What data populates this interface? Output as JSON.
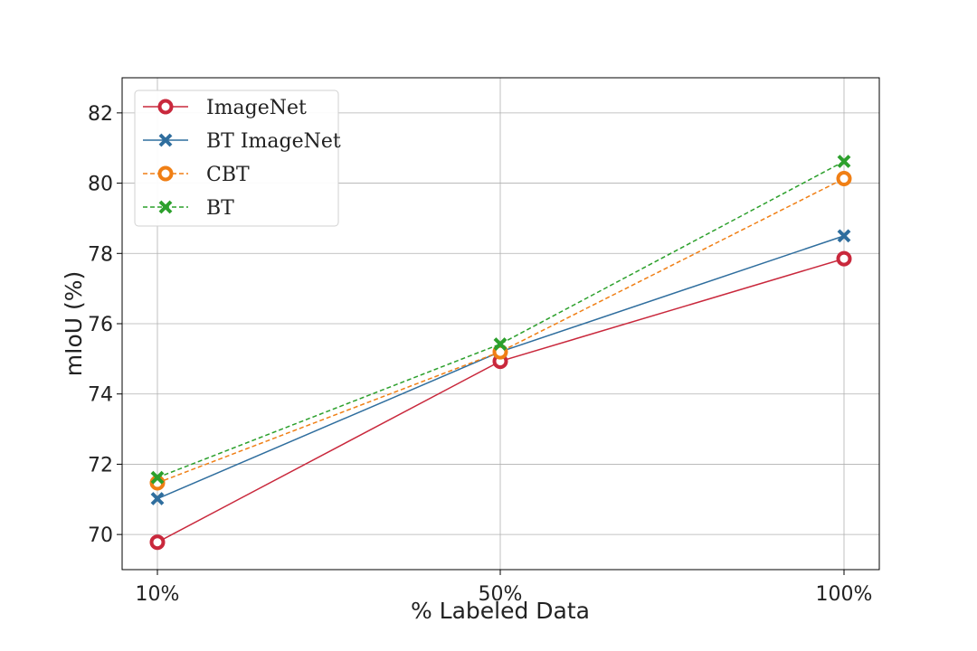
{
  "chart_data": {
    "type": "line",
    "categories": [
      "10%",
      "50%",
      "100%"
    ],
    "xlabel": "% Labeled Data",
    "ylabel": "mIoU (%)",
    "ylim": [
      69,
      83
    ],
    "yticks": [
      70,
      72,
      74,
      76,
      78,
      80,
      82
    ],
    "grid": true,
    "legend_position": "top-left",
    "series": [
      {
        "name": "ImageNet",
        "values": [
          69.78,
          74.93,
          77.85
        ],
        "color": "#c9283c",
        "marker": "circle",
        "linestyle": "solid"
      },
      {
        "name": "BT ImageNet",
        "values": [
          71.02,
          75.2,
          78.5
        ],
        "color": "#2f6e9e",
        "marker": "x",
        "linestyle": "solid"
      },
      {
        "name": "CBT",
        "values": [
          71.47,
          75.2,
          80.13
        ],
        "color": "#f07f15",
        "marker": "circle",
        "linestyle": "dashed"
      },
      {
        "name": "BT",
        "values": [
          71.62,
          75.42,
          80.62
        ],
        "color": "#2ca02c",
        "marker": "x",
        "linestyle": "dashed"
      }
    ]
  }
}
